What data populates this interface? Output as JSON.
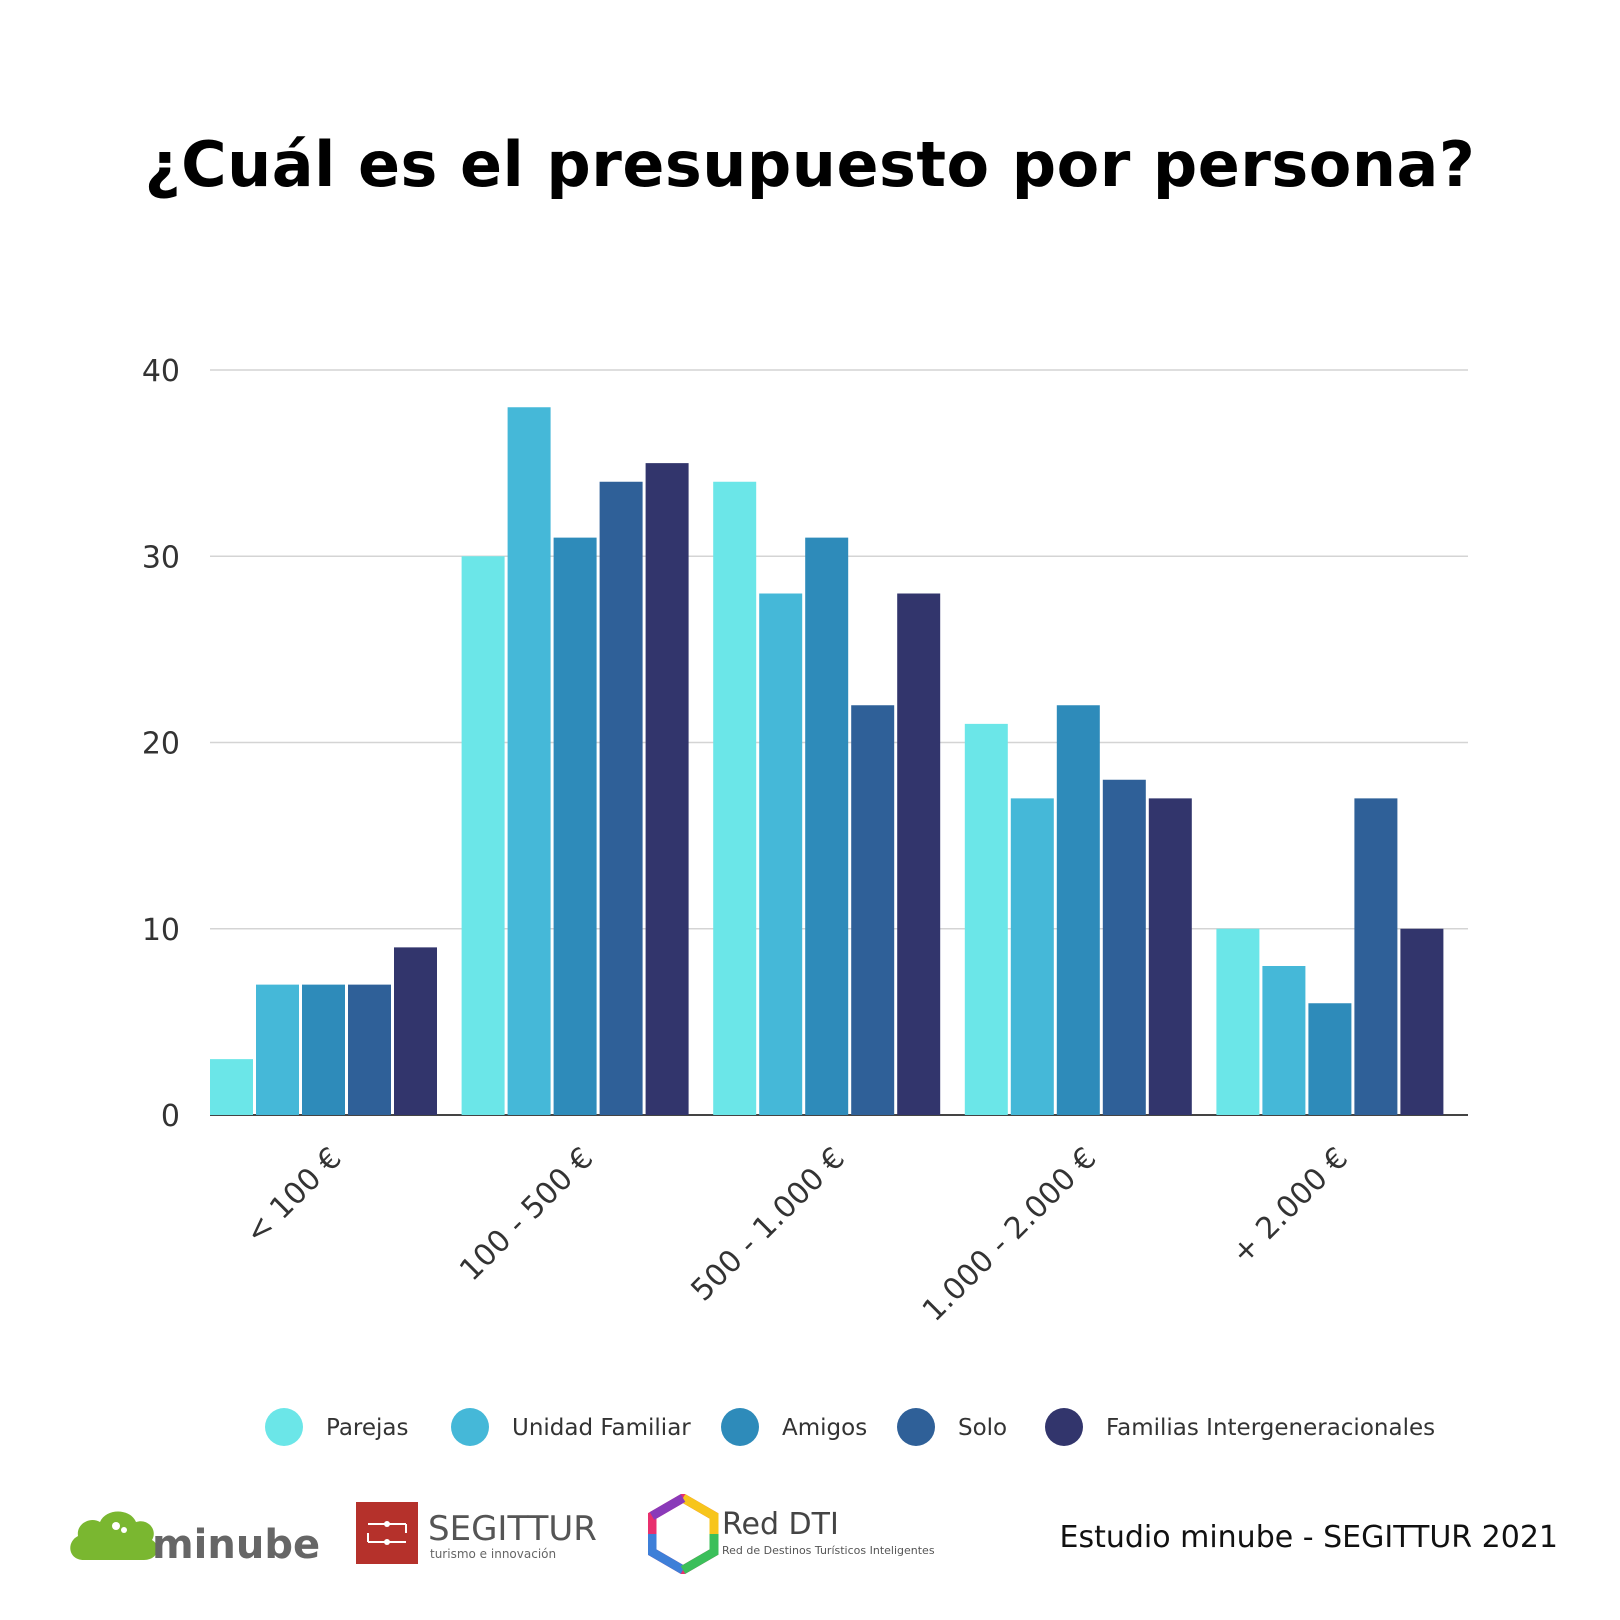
{
  "title": "¿Cuál es el presupuesto por persona?",
  "chart_data": {
    "type": "bar",
    "title": "¿Cuál es el presupuesto por persona?",
    "categories": [
      "< 100 €",
      "100 - 500 €",
      "500 - 1.000 €",
      "1.000 - 2.000 €",
      "+ 2.000 €"
    ],
    "series": [
      {
        "name": "Parejas",
        "color": "#6be6e8",
        "values": [
          3,
          30,
          34,
          21,
          10
        ]
      },
      {
        "name": "Unidad Familiar",
        "color": "#45b8d8",
        "values": [
          7,
          38,
          28,
          17,
          8
        ]
      },
      {
        "name": "Amigos",
        "color": "#2e8bba",
        "values": [
          7,
          31,
          31,
          22,
          6
        ]
      },
      {
        "name": "Solo",
        "color": "#2f6098",
        "values": [
          7,
          34,
          22,
          18,
          17
        ]
      },
      {
        "name": "Familias Intergeneracionales",
        "color": "#32356c",
        "values": [
          9,
          35,
          28,
          17,
          10
        ]
      }
    ],
    "yticks": [
      0,
      10,
      20,
      30,
      40
    ],
    "ylim": [
      0,
      40
    ],
    "grid": true,
    "legend": "bottom"
  },
  "logos": {
    "minube": "minube",
    "segittur": "SEGITTUR",
    "segittur_tagline": "turismo e innovación",
    "reddti": "Red DTI",
    "reddti_tagline": "Red de Destinos Turísticos Inteligentes"
  },
  "credit": "Estudio minube - SEGITTUR 2021"
}
